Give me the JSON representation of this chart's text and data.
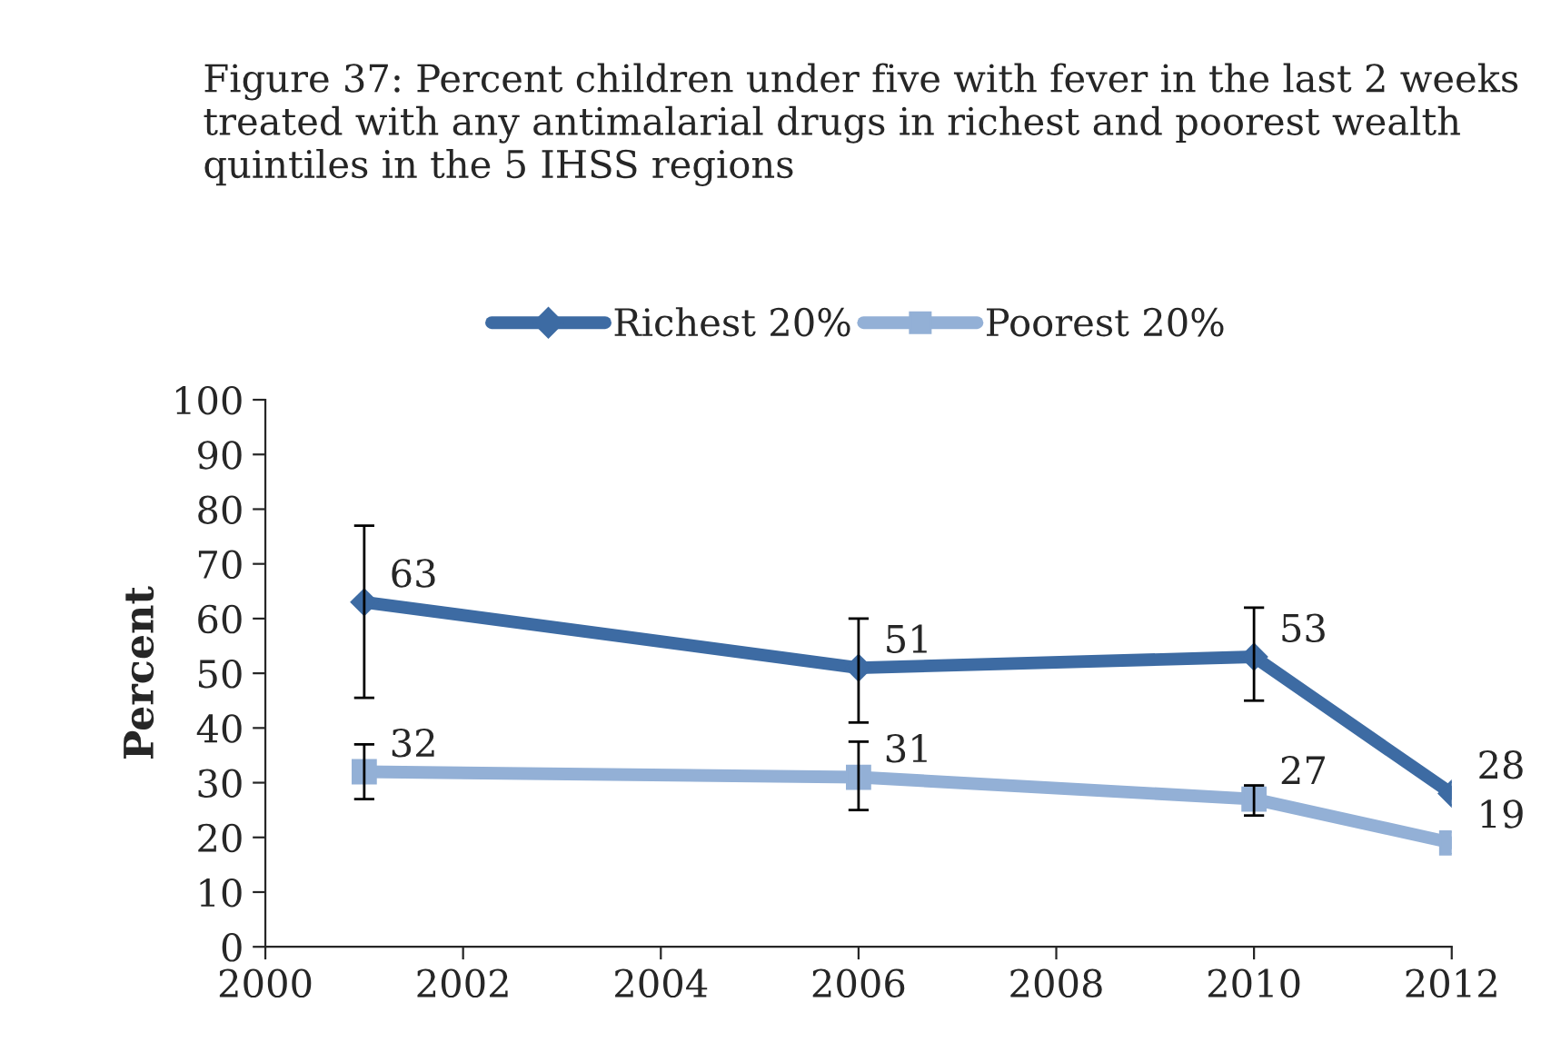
{
  "chart_data": {
    "type": "line",
    "title": "Figure 37: Percent children under five with fever in the last 2 weeks treated with any antimalarial drugs in richest and poorest wealth quintiles in the 5 IHSS regions",
    "ylabel": "Percent",
    "x": [
      2001,
      2006,
      2010,
      2012
    ],
    "series": [
      {
        "name": "Richest 20%",
        "color": "#3d6ba3",
        "marker": "diamond",
        "values": [
          63,
          51,
          53,
          28
        ],
        "errors": [
          [
            45.5,
            77
          ],
          [
            41,
            60
          ],
          [
            45,
            62
          ],
          null
        ]
      },
      {
        "name": "Poorest 20%",
        "color": "#93b0d6",
        "marker": "square",
        "values": [
          32,
          31,
          27,
          19
        ],
        "errors": [
          [
            27,
            37
          ],
          [
            25,
            37.5
          ],
          [
            24,
            29.5
          ],
          null
        ]
      }
    ],
    "xlim": [
      2000,
      2012
    ],
    "xticks": [
      2000,
      2002,
      2004,
      2006,
      2008,
      2010,
      2012
    ],
    "ylim": [
      0,
      100
    ],
    "yticks": [
      0,
      10,
      20,
      30,
      40,
      50,
      60,
      70,
      80,
      90,
      100
    ],
    "data_labels": true,
    "legend": "top",
    "grid": false
  }
}
